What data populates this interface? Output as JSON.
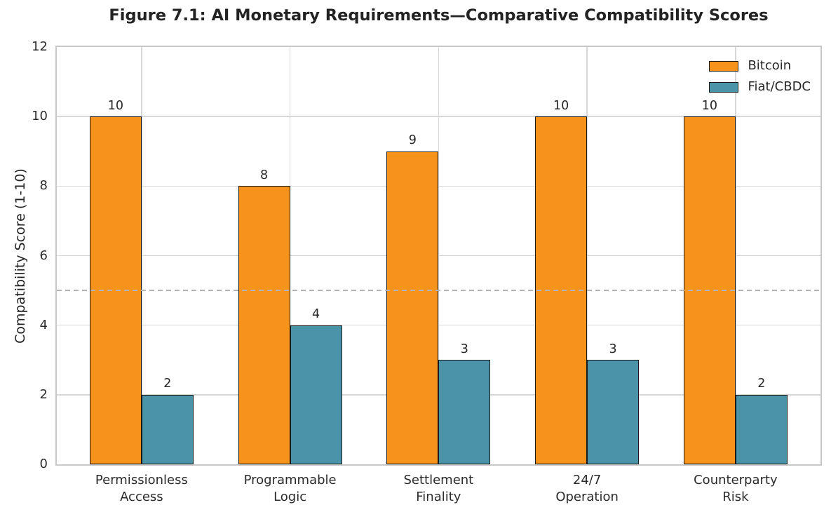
{
  "chart_data": {
    "type": "bar",
    "title": "Figure 7.1: AI Monetary Requirements—Comparative Compatibility Scores",
    "categories": [
      "Permissionless\nAccess",
      "Programmable\nLogic",
      "Settlement\nFinality",
      "24/7\nOperation",
      "Counterparty\nRisk"
    ],
    "series": [
      {
        "name": "Bitcoin",
        "color": "#F7931A",
        "values": [
          10,
          8,
          9,
          10,
          10
        ]
      },
      {
        "name": "Fiat/CBDC",
        "color": "#4A93A8",
        "values": [
          2,
          4,
          3,
          3,
          2
        ]
      }
    ],
    "xlabel": "",
    "ylabel": "Compatibility Score (1-10)",
    "ylim": [
      0,
      12
    ],
    "yticks": [
      0,
      2,
      4,
      6,
      8,
      10,
      12
    ],
    "grid": true,
    "legend_position": "upper right",
    "value_labels": true,
    "reference_line": {
      "y": 5,
      "style": "dashed",
      "color": "#b3b3b3"
    },
    "bar_edge_color": "#1a1a1a"
  },
  "colors": {
    "grid": "#d7d7d7",
    "spine": "#c9c9c9",
    "text": "#262626"
  }
}
